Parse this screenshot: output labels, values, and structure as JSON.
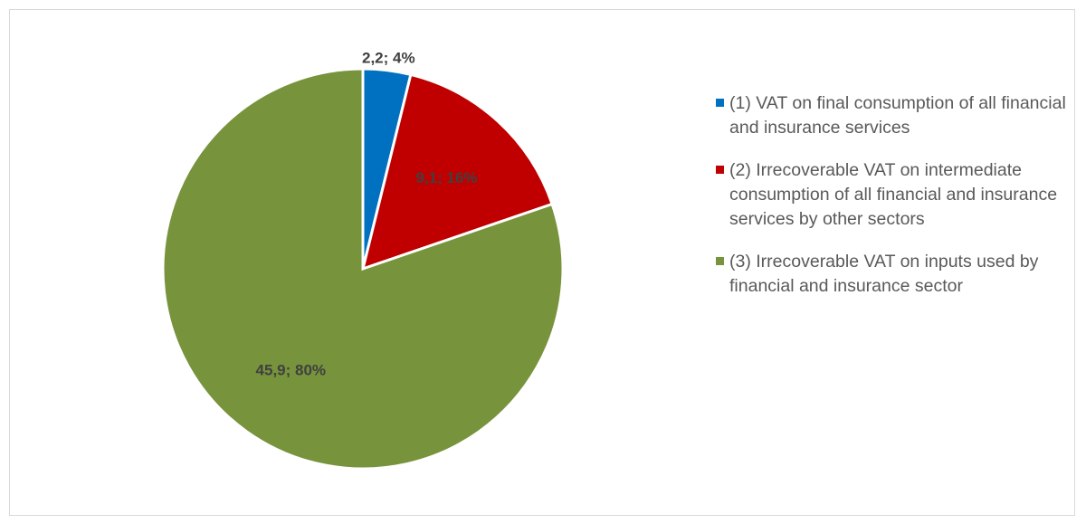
{
  "chart_data": {
    "type": "pie",
    "title": "",
    "series": [
      {
        "values": [
          2.2,
          9.1,
          45.9
        ],
        "percents": [
          "4%",
          "16%",
          "80%"
        ],
        "labels": [
          "2,2; 4%",
          "9,1; 16%",
          "45,9; 80%"
        ]
      }
    ],
    "categories": [
      "(1) VAT on final consumption of all financial and insurance services",
      "(2) Irrecoverable VAT on intermediate consumption of all financial and insurance services by other sectors",
      "(3) Irrecoverable VAT on inputs used by financial and insurance sector"
    ],
    "colors": [
      "#0070c0",
      "#c00000",
      "#77933c"
    ],
    "legend_position": "right"
  }
}
